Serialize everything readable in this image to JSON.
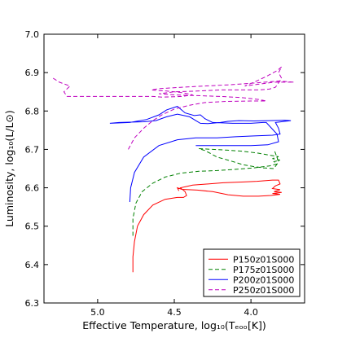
{
  "chart_data": {
    "type": "line",
    "title": "",
    "xlabel": "Effective Temperature, log₁₀(Tₑₒₒ[K])",
    "ylabel": "Luminosity, log₁₀(L/L⊙)",
    "xlim": [
      5.35,
      3.65
    ],
    "ylim": [
      6.3,
      7.0
    ],
    "x_inverted": true,
    "x_ticks": [
      5.0,
      4.5,
      4.0
    ],
    "x_tick_labels": [
      "5.0",
      "4.5",
      "4.0"
    ],
    "y_ticks": [
      6.3,
      6.4,
      6.5,
      6.6,
      6.7,
      6.8,
      6.9,
      7.0
    ],
    "y_tick_labels": [
      "6.3",
      "6.4",
      "6.5",
      "6.6",
      "6.7",
      "6.8",
      "6.9",
      "7.0"
    ],
    "grid": false,
    "legend_position": "lower-right",
    "series": [
      {
        "name": "P150z01S000",
        "color": "#ff0000",
        "dash": "solid",
        "points": [
          [
            4.77,
            6.38
          ],
          [
            4.77,
            6.42
          ],
          [
            4.76,
            6.46
          ],
          [
            4.74,
            6.5
          ],
          [
            4.7,
            6.53
          ],
          [
            4.64,
            6.555
          ],
          [
            4.56,
            6.57
          ],
          [
            4.48,
            6.575
          ],
          [
            4.44,
            6.575
          ],
          [
            4.42,
            6.58
          ],
          [
            4.43,
            6.59
          ],
          [
            4.46,
            6.6
          ],
          [
            4.38,
            6.607
          ],
          [
            4.28,
            6.61
          ],
          [
            4.18,
            6.613
          ],
          [
            4.06,
            6.615
          ],
          [
            3.96,
            6.617
          ],
          [
            3.86,
            6.62
          ],
          [
            3.82,
            6.62
          ],
          [
            3.81,
            6.61
          ],
          [
            3.84,
            6.605
          ],
          [
            3.86,
            6.598
          ],
          [
            3.81,
            6.595
          ],
          [
            3.85,
            6.59
          ],
          [
            3.8,
            6.588
          ],
          [
            3.86,
            6.585
          ],
          [
            3.81,
            6.583
          ],
          [
            3.87,
            6.58
          ],
          [
            3.95,
            6.578
          ],
          [
            4.05,
            6.578
          ],
          [
            4.15,
            6.582
          ],
          [
            4.25,
            6.59
          ],
          [
            4.35,
            6.594
          ],
          [
            4.45,
            6.596
          ],
          [
            4.48,
            6.6
          ],
          [
            4.47,
            6.592
          ]
        ]
      },
      {
        "name": "P175z01S000",
        "color": "#008000",
        "dash": "5,3",
        "points": [
          [
            4.77,
            6.475
          ],
          [
            4.77,
            6.52
          ],
          [
            4.75,
            6.56
          ],
          [
            4.71,
            6.59
          ],
          [
            4.64,
            6.612
          ],
          [
            4.56,
            6.628
          ],
          [
            4.46,
            6.638
          ],
          [
            4.34,
            6.643
          ],
          [
            4.22,
            6.645
          ],
          [
            4.1,
            6.648
          ],
          [
            3.98,
            6.652
          ],
          [
            3.88,
            6.657
          ],
          [
            3.83,
            6.662
          ],
          [
            3.85,
            6.668
          ],
          [
            3.81,
            6.672
          ],
          [
            3.86,
            6.676
          ],
          [
            3.82,
            6.681
          ],
          [
            3.88,
            6.685
          ],
          [
            3.95,
            6.69
          ],
          [
            4.05,
            6.695
          ],
          [
            4.15,
            6.698
          ],
          [
            4.25,
            6.7
          ],
          [
            4.34,
            6.702
          ],
          [
            4.3,
            6.697
          ],
          [
            4.22,
            6.68
          ],
          [
            4.15,
            6.672
          ],
          [
            4.05,
            6.66
          ],
          [
            3.98,
            6.655
          ],
          [
            3.92,
            6.652
          ],
          [
            3.85,
            6.65
          ],
          [
            3.82,
            6.668
          ],
          [
            3.84,
            6.69
          ],
          [
            3.85,
            6.7
          ]
        ]
      },
      {
        "name": "P200z01S000",
        "color": "#0000ff",
        "dash": "solid",
        "points": [
          [
            4.79,
            6.563
          ],
          [
            4.785,
            6.6
          ],
          [
            4.76,
            6.64
          ],
          [
            4.7,
            6.68
          ],
          [
            4.6,
            6.71
          ],
          [
            4.48,
            6.725
          ],
          [
            4.36,
            6.73
          ],
          [
            4.22,
            6.73
          ],
          [
            4.1,
            6.733
          ],
          [
            3.98,
            6.735
          ],
          [
            3.86,
            6.737
          ],
          [
            3.81,
            6.74
          ],
          [
            3.82,
            6.755
          ],
          [
            3.84,
            6.77
          ],
          [
            3.74,
            6.775
          ],
          [
            3.78,
            6.776
          ],
          [
            3.88,
            6.775
          ],
          [
            3.98,
            6.774
          ],
          [
            4.08,
            6.775
          ],
          [
            4.15,
            6.773
          ],
          [
            4.2,
            6.77
          ],
          [
            4.28,
            6.767
          ],
          [
            4.33,
            6.768
          ],
          [
            4.36,
            6.775
          ],
          [
            4.4,
            6.785
          ],
          [
            4.48,
            6.792
          ],
          [
            4.55,
            6.785
          ],
          [
            4.62,
            6.775
          ],
          [
            4.7,
            6.772
          ],
          [
            4.86,
            6.77
          ],
          [
            4.92,
            6.768
          ],
          [
            4.79,
            6.77
          ],
          [
            4.68,
            6.778
          ],
          [
            4.6,
            6.79
          ],
          [
            4.55,
            6.803
          ],
          [
            4.48,
            6.812
          ],
          [
            4.43,
            6.795
          ],
          [
            4.37,
            6.788
          ],
          [
            4.33,
            6.79
          ],
          [
            4.3,
            6.78
          ],
          [
            4.25,
            6.77
          ],
          [
            4.12,
            6.768
          ],
          [
            4.0,
            6.768
          ],
          [
            3.92,
            6.77
          ],
          [
            3.9,
            6.77
          ],
          [
            3.83,
            6.74
          ],
          [
            3.82,
            6.72
          ],
          [
            3.89,
            6.712
          ],
          [
            4.0,
            6.71
          ],
          [
            4.12,
            6.71
          ],
          [
            4.24,
            6.71
          ],
          [
            4.36,
            6.71
          ]
        ]
      },
      {
        "name": "P250z01S000",
        "color": "#bf00bf",
        "dash": "5,3",
        "points": [
          [
            4.8,
            6.7
          ],
          [
            4.76,
            6.73
          ],
          [
            4.7,
            6.755
          ],
          [
            4.64,
            6.775
          ],
          [
            4.58,
            6.79
          ],
          [
            4.5,
            6.805
          ],
          [
            4.4,
            6.815
          ],
          [
            4.3,
            6.822
          ],
          [
            4.16,
            6.825
          ],
          [
            4.0,
            6.826
          ],
          [
            3.9,
            6.826
          ],
          [
            3.95,
            6.83
          ],
          [
            4.06,
            6.835
          ],
          [
            4.2,
            6.838
          ],
          [
            4.35,
            6.84
          ],
          [
            4.5,
            6.842
          ],
          [
            4.6,
            6.845
          ],
          [
            4.5,
            6.85
          ],
          [
            4.35,
            6.852
          ],
          [
            4.2,
            6.855
          ],
          [
            4.05,
            6.855
          ],
          [
            3.95,
            6.855
          ],
          [
            3.88,
            6.857
          ],
          [
            3.84,
            6.862
          ],
          [
            3.82,
            6.873
          ],
          [
            3.8,
            6.885
          ],
          [
            3.82,
            6.9
          ],
          [
            3.8,
            6.915
          ],
          [
            3.83,
            6.905
          ],
          [
            3.9,
            6.89
          ],
          [
            3.98,
            6.875
          ],
          [
            4.04,
            6.865
          ],
          [
            3.85,
            6.875
          ],
          [
            3.72,
            6.875
          ],
          [
            3.82,
            6.878
          ],
          [
            4.0,
            6.872
          ],
          [
            4.15,
            6.868
          ],
          [
            4.3,
            6.865
          ],
          [
            4.45,
            6.862
          ],
          [
            4.6,
            6.858
          ],
          [
            4.65,
            6.855
          ],
          [
            4.55,
            6.852
          ],
          [
            4.45,
            6.848
          ],
          [
            4.38,
            6.842
          ],
          [
            4.45,
            6.838
          ],
          [
            4.58,
            6.836
          ],
          [
            4.64,
            6.838
          ],
          [
            4.8,
            6.838
          ],
          [
            4.95,
            6.838
          ],
          [
            5.1,
            6.838
          ],
          [
            5.2,
            6.838
          ],
          [
            5.22,
            6.85
          ],
          [
            5.18,
            6.865
          ],
          [
            5.25,
            6.875
          ],
          [
            5.3,
            6.888
          ]
        ]
      }
    ]
  }
}
